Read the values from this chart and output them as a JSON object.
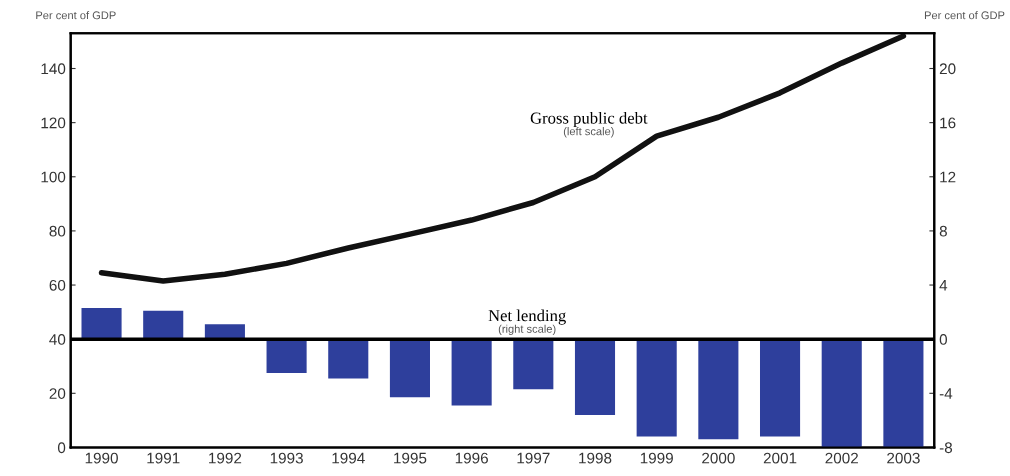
{
  "chart_data": {
    "type": "bar",
    "categories": [
      "1990",
      "1991",
      "1992",
      "1993",
      "1994",
      "1995",
      "1996",
      "1997",
      "1998",
      "1999",
      "2000",
      "2001",
      "2002",
      "2003"
    ],
    "series": [
      {
        "name": "Gross public debt",
        "type": "line",
        "axis": "y",
        "color": "#111111",
        "values": [
          64.5,
          61.5,
          64,
          68,
          73.7,
          78.8,
          84,
          90.5,
          100,
          115,
          122,
          131,
          142,
          152
        ]
      },
      {
        "name": "Net lending",
        "axis": "y2",
        "color": "#2e3f9c",
        "values": [
          2.3,
          2.1,
          1.1,
          -2.5,
          -2.9,
          -4.3,
          -4.9,
          -3.7,
          -5.6,
          -7.2,
          -7.4,
          -7.2,
          -8.0,
          -8.0
        ]
      }
    ],
    "ylabel": "Per cent of GDP",
    "y2label": "Per cent of GDP",
    "ylim": [
      0,
      153
    ],
    "yticks": [
      0,
      20,
      40,
      60,
      80,
      100,
      120,
      140
    ],
    "y2lim": [
      -8,
      22.6
    ],
    "y2ticks": [
      -8,
      -4,
      0,
      4,
      8,
      12,
      16,
      20
    ],
    "ref_lines": [
      {
        "axis": "y2",
        "value": 0,
        "color": "#000000"
      }
    ],
    "annotations": [
      "(left scale)",
      "(right scale)"
    ],
    "line_style": "solid",
    "marker": "none",
    "grid": false,
    "legend": false
  }
}
